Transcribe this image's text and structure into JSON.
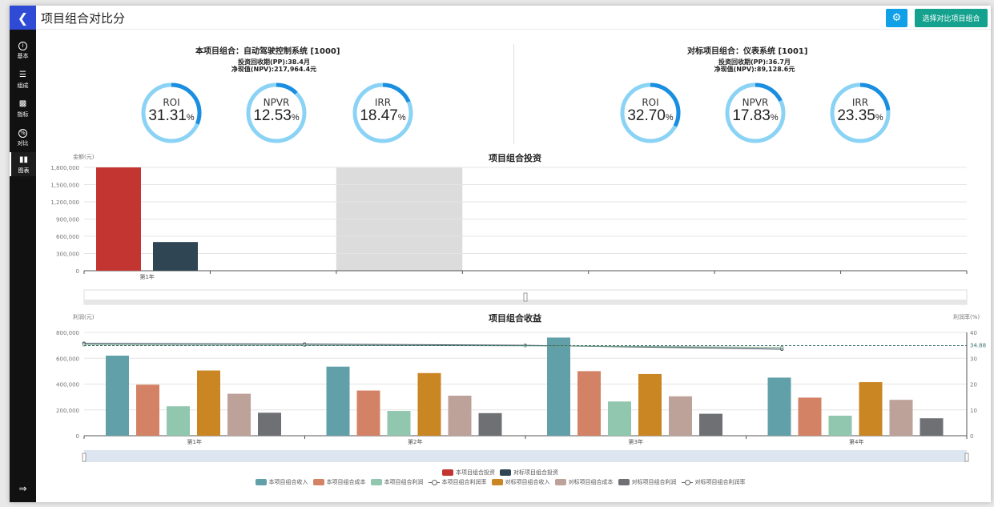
{
  "header": {
    "title": "项目组合对比分",
    "select_button": "选择对比项目组合"
  },
  "sidebar": {
    "items": [
      {
        "label": "基本",
        "icon": "info-icon"
      },
      {
        "label": "组成",
        "icon": "tree-icon"
      },
      {
        "label": "指标",
        "icon": "bar-chart-icon"
      },
      {
        "label": "对比",
        "icon": "percent-icon"
      },
      {
        "label": "图表",
        "icon": "chart-icon",
        "active": true
      }
    ]
  },
  "left_panel": {
    "title": "本项目组合：自动驾驶控制系统 [1000]",
    "pp": "投资回收期(PP):38.4月",
    "npv": "净现值(NPV):217,964.4元",
    "gauges": [
      {
        "name": "ROI",
        "value": "31.31",
        "unit": "%",
        "pct": 31.31
      },
      {
        "name": "NPVR",
        "value": "12.53",
        "unit": "%",
        "pct": 12.53
      },
      {
        "name": "IRR",
        "value": "18.47",
        "unit": "%",
        "pct": 18.47
      }
    ]
  },
  "right_panel": {
    "title": "对标项目组合：仪表系统 [1001]",
    "pp": "投资回收期(PP):36.7月",
    "npv": "净现值(NPV):89,128.6元",
    "gauges": [
      {
        "name": "ROI",
        "value": "32.70",
        "unit": "%",
        "pct": 32.7
      },
      {
        "name": "NPVR",
        "value": "17.83",
        "unit": "%",
        "pct": 17.83
      },
      {
        "name": "IRR",
        "value": "23.35",
        "unit": "%",
        "pct": 23.35
      }
    ]
  },
  "colors": {
    "gauge_bg": "#8bd3f5",
    "gauge_fg": "#1a8ee0",
    "invest_self": "#c23531",
    "invest_bench": "#2f4554",
    "income_self": "#61a0a8",
    "cost_self": "#d48265",
    "profit_self": "#91c7ae",
    "income_bench": "#ca8622",
    "cost_bench": "#bda29a",
    "profit_bench": "#6e7074",
    "rate_self": "#2f4554",
    "rate_bench": "#749f83"
  },
  "chart_data": [
    {
      "type": "bar",
      "title": "项目组合投资",
      "ylabel": "金额(元)",
      "categories": [
        "第1年"
      ],
      "ylim": [
        0,
        1800000
      ],
      "yticks": [
        "0",
        "300,000",
        "600,000",
        "900,000",
        "1,200,000",
        "1,500,000",
        "1,800,000"
      ],
      "series": [
        {
          "name": "本项目组合投资",
          "values": [
            1800000
          ]
        },
        {
          "name": "对标项目组合投资",
          "values": [
            500000
          ]
        }
      ]
    },
    {
      "type": "bar",
      "title": "项目组合收益",
      "ylabel": "利润(元)",
      "y2label": "利润率(%)",
      "categories": [
        "第1年",
        "第2年",
        "第3年",
        "第4年"
      ],
      "ylim": [
        0,
        800000
      ],
      "yticks": [
        "0",
        "200,000",
        "400,000",
        "600,000",
        "800,000"
      ],
      "y2lim": [
        0,
        40
      ],
      "y2ticks": [
        "0",
        "10",
        "20",
        "30",
        "40"
      ],
      "markline_label": "34.88",
      "markline_value": 34.88,
      "series": [
        {
          "name": "本项目组合收入",
          "values": [
            620000,
            535000,
            760000,
            450000
          ]
        },
        {
          "name": "本项目组合成本",
          "values": [
            395000,
            350000,
            500000,
            295000
          ]
        },
        {
          "name": "本项目组合利润",
          "values": [
            228000,
            192000,
            265000,
            155000
          ]
        },
        {
          "name": "对标项目组合收入",
          "values": [
            505000,
            485000,
            478000,
            415000
          ]
        },
        {
          "name": "对标项目组合成本",
          "values": [
            325000,
            310000,
            305000,
            278000
          ]
        },
        {
          "name": "对标项目组合利润",
          "values": [
            178000,
            175000,
            170000,
            135000
          ]
        }
      ],
      "line_series": [
        {
          "name": "本项目组合利润率",
          "values": [
            35.8,
            35.5,
            35.0,
            33.5
          ]
        },
        {
          "name": "对标项目组合利润率",
          "values": [
            35.2,
            35.0,
            34.8,
            34.2
          ]
        }
      ]
    }
  ],
  "legend": {
    "row1": [
      "本项目组合投资",
      "对标项目组合投资"
    ],
    "row2": [
      "本项目组合收入",
      "本项目组合成本",
      "本项目组合利润",
      "本项目组合利润率",
      "对标项目组合收入",
      "对标项目组合成本",
      "对标项目组合利润",
      "对标项目组合利润率"
    ]
  }
}
